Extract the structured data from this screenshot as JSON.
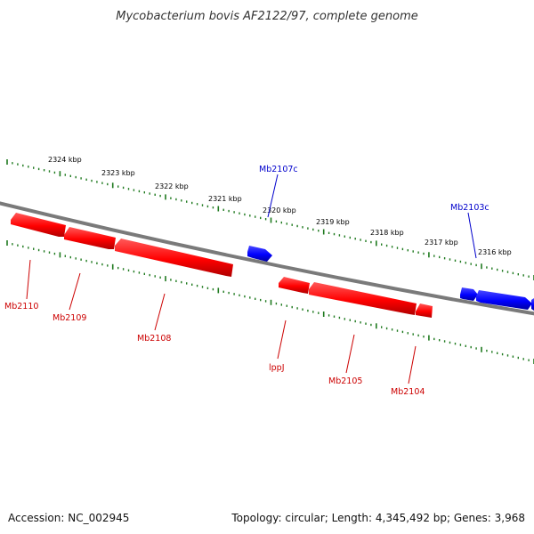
{
  "title": "Mycobacterium bovis AF2122/97, complete genome",
  "footer": {
    "accession": "Accession: NC_002945",
    "summary": "Topology: circular; Length: 4,345,492 bp; Genes: 3,968"
  },
  "colors": {
    "backbone": "#7a7a7a",
    "ticks": "#1f7a1f",
    "forward_gene": "#ff0000",
    "reverse_gene": "#0000ff",
    "forward_label": "#cc0000",
    "reverse_label": "#0000cc"
  },
  "kbp_labels": [
    "2324 kbp",
    "2323 kbp",
    "2322 kbp",
    "2321 kbp",
    "2320 kbp",
    "2319 kbp",
    "2318 kbp",
    "2317 kbp",
    "2316 kbp"
  ],
  "genes_forward": [
    "Mb2110",
    "Mb2109",
    "Mb2108",
    "lppJ",
    "Mb2105",
    "Mb2104"
  ],
  "genes_reverse": [
    "Mb2107c",
    "Mb2103c"
  ]
}
